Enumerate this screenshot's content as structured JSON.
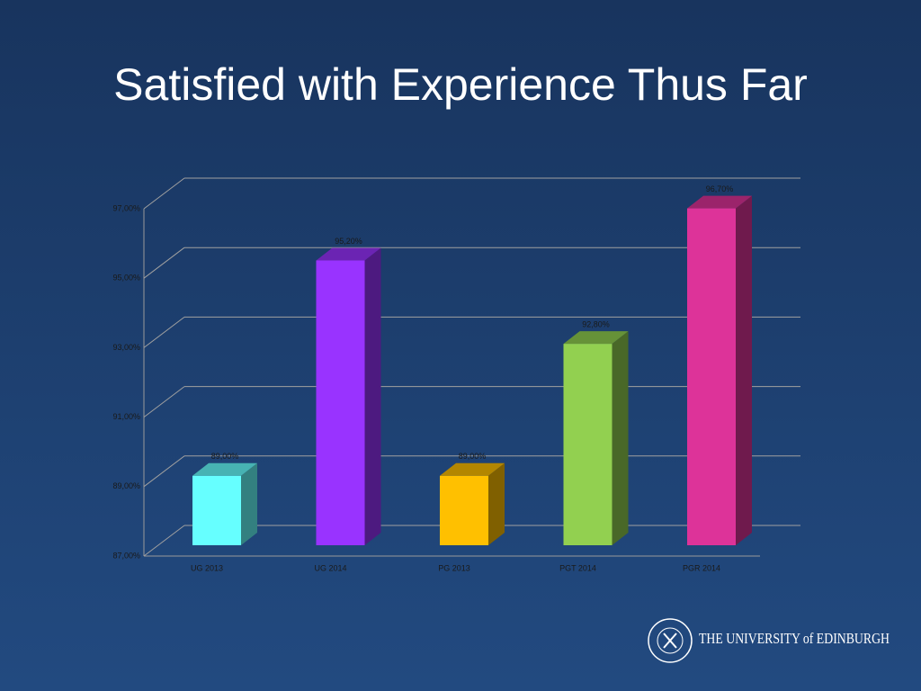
{
  "chart_data": {
    "type": "bar3d",
    "title": "Satisfied with Experience Thus Far",
    "categories": [
      "UG 2013",
      "UG 2014",
      "PG 2013",
      "PGT 2014",
      "PGR 2014"
    ],
    "values": [
      89.0,
      95.2,
      89.0,
      92.8,
      96.7
    ],
    "value_labels": [
      "89,00%",
      "95,20%",
      "89,00%",
      "92,80%",
      "96,70%"
    ],
    "colors": [
      "#66ffff",
      "#9933ff",
      "#ffc000",
      "#92d050",
      "#dd3399"
    ],
    "ylim": [
      87,
      97
    ],
    "yticks": [
      {
        "value": 87,
        "label": "87,00%"
      },
      {
        "value": 89,
        "label": "89,00%"
      },
      {
        "value": 91,
        "label": "91,00%"
      },
      {
        "value": 93,
        "label": "93,00%"
      },
      {
        "value": 95,
        "label": "95,00%"
      },
      {
        "value": 97,
        "label": "97,00%"
      }
    ],
    "grid": true
  },
  "logo_text": "THE UNIVERSITY of EDINBURGH"
}
